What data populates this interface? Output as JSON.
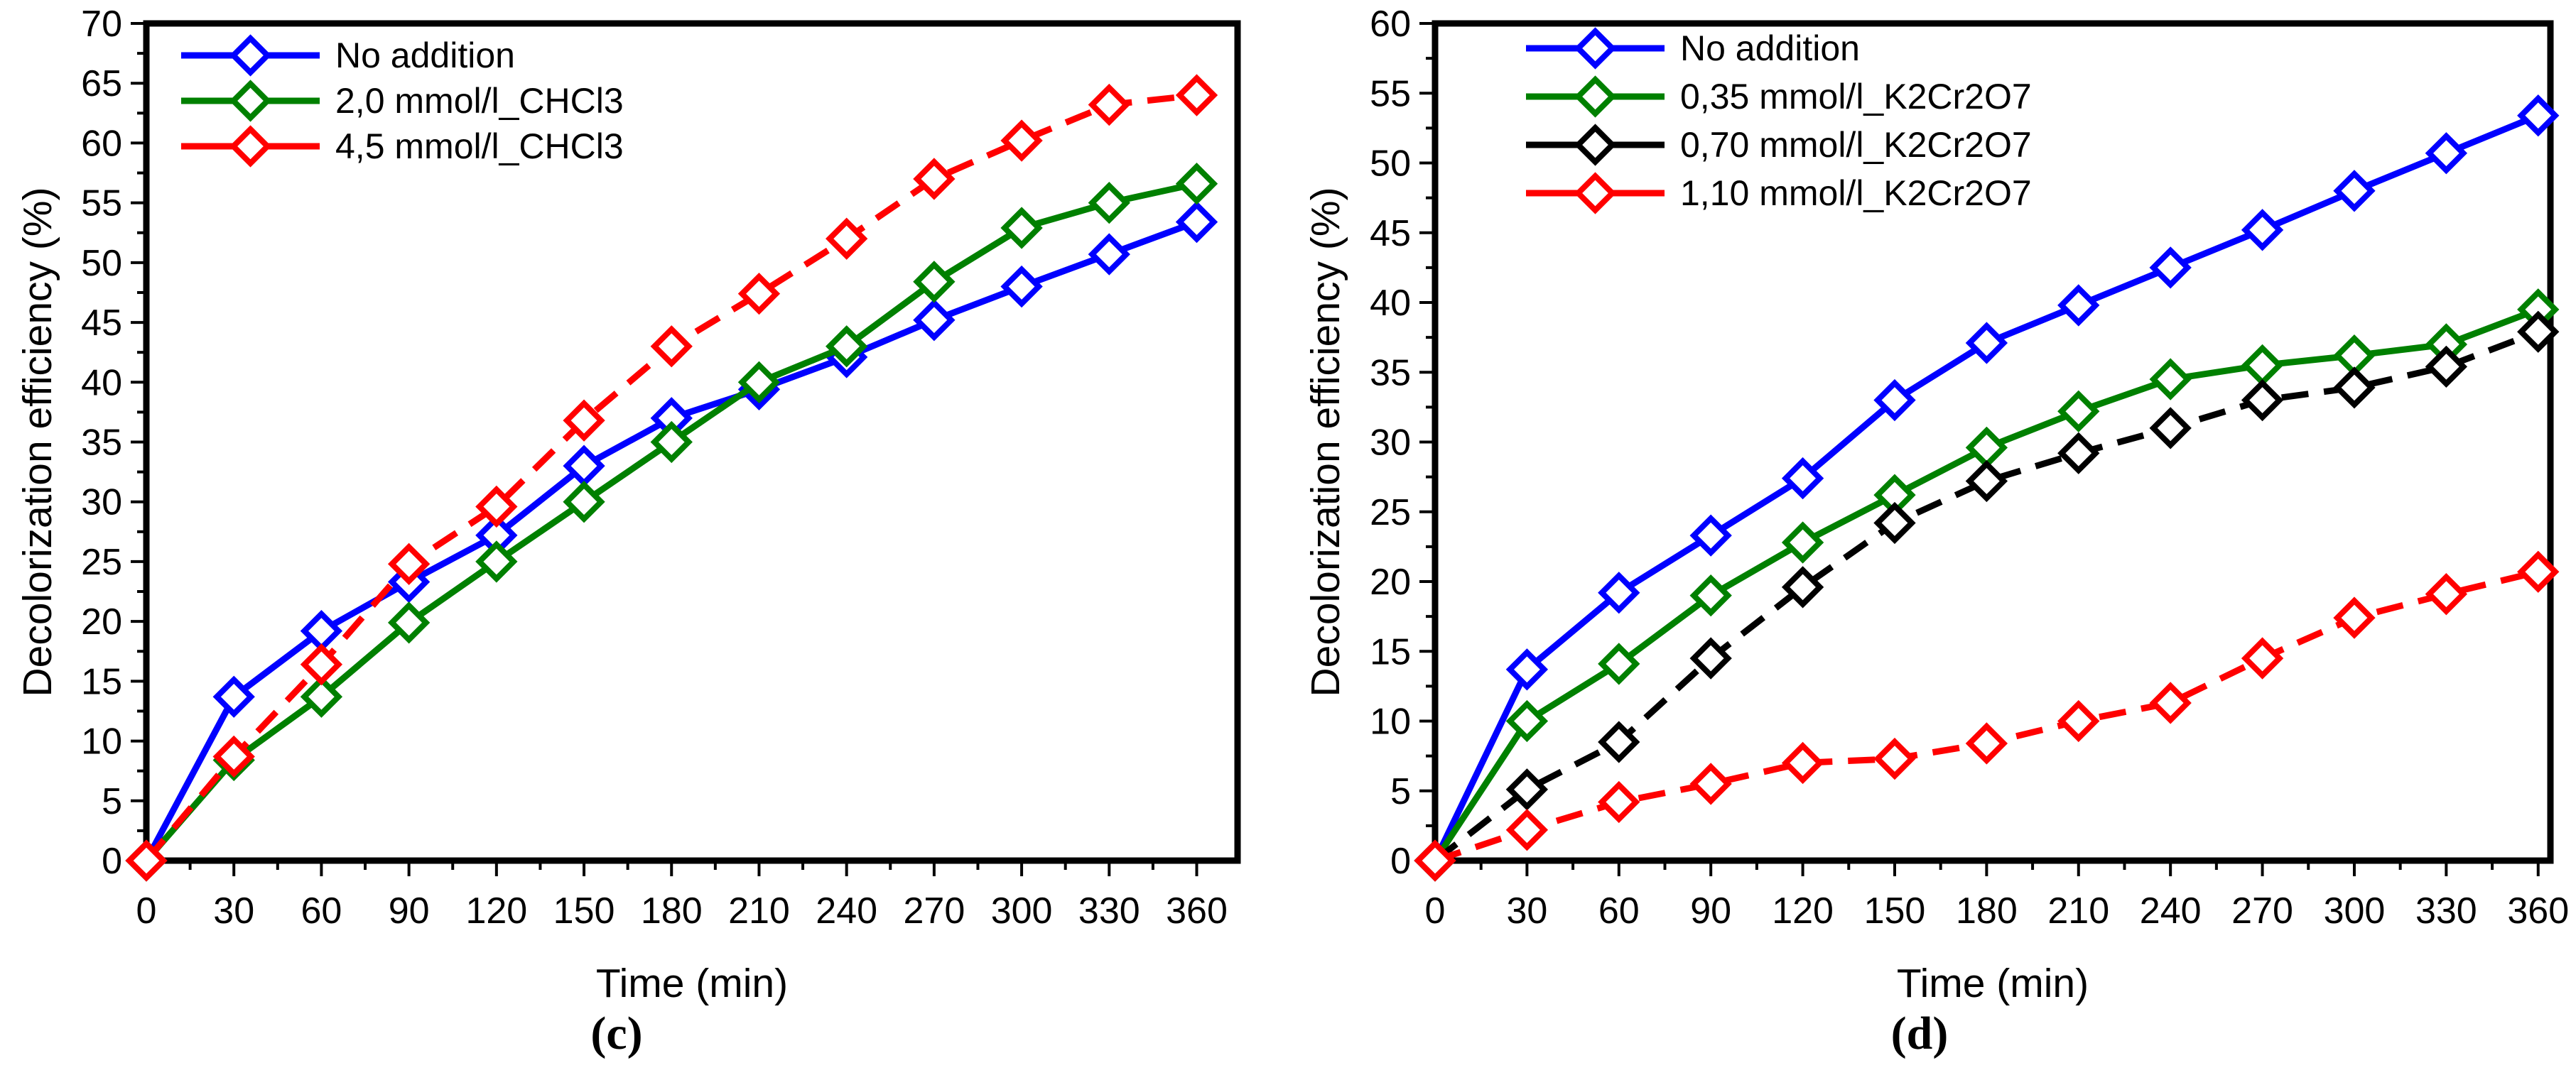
{
  "figure": {
    "background": "#ffffff",
    "text_color": "#000000"
  },
  "chart_data": [
    {
      "id": "c",
      "type": "line",
      "caption": "(c)",
      "xlabel": "Time (min)",
      "ylabel": "Decolorization efficiency (%)",
      "xlim": [
        0,
        374
      ],
      "ylim": [
        0,
        70
      ],
      "x_ticks": [
        0,
        30,
        60,
        90,
        120,
        150,
        180,
        210,
        240,
        270,
        300,
        330,
        360
      ],
      "y_ticks": [
        0,
        5,
        10,
        15,
        20,
        25,
        30,
        35,
        40,
        45,
        50,
        55,
        60,
        65,
        70
      ],
      "x_minor_step": 15,
      "y_minor_step": 2.5,
      "grid": "off",
      "legend_position": "top-left",
      "x": [
        0,
        30,
        60,
        90,
        120,
        150,
        180,
        210,
        240,
        270,
        300,
        330,
        360
      ],
      "series": [
        {
          "name": "No addition",
          "color": "#0000ff",
          "line_style": "solid",
          "marker": "open-diamond",
          "values": [
            0,
            13.7,
            19.2,
            23.3,
            27.2,
            33.0,
            37.0,
            39.4,
            42.1,
            45.2,
            48.0,
            50.7,
            53.4
          ]
        },
        {
          "name": "2,0 mmol/l_CHCl3",
          "color": "#008000",
          "line_style": "solid",
          "marker": "open-diamond",
          "values": [
            0,
            8.4,
            13.7,
            19.9,
            25.0,
            30.0,
            35.0,
            40.0,
            43.0,
            48.4,
            52.9,
            55.0,
            56.6
          ]
        },
        {
          "name": "4,5 mmol/l_CHCl3",
          "color": "#ff0000",
          "line_style": "dashed",
          "marker": "open-diamond",
          "values": [
            0,
            8.7,
            16.4,
            24.8,
            29.6,
            36.8,
            43.0,
            47.4,
            52.0,
            57.0,
            60.2,
            63.2,
            64.0
          ]
        }
      ]
    },
    {
      "id": "d",
      "type": "line",
      "caption": "(d)",
      "xlabel": "Time (min)",
      "ylabel": "Decolorization efficiency (%)",
      "xlim": [
        0,
        364
      ],
      "ylim": [
        0,
        60
      ],
      "x_ticks": [
        0,
        30,
        60,
        90,
        120,
        150,
        180,
        210,
        240,
        270,
        300,
        330,
        360
      ],
      "y_ticks": [
        0,
        5,
        10,
        15,
        20,
        25,
        30,
        35,
        40,
        45,
        50,
        55,
        60
      ],
      "x_minor_step": 15,
      "y_minor_step": 2.5,
      "grid": "off",
      "legend_position": "top-left",
      "x": [
        0,
        30,
        60,
        90,
        120,
        150,
        180,
        210,
        240,
        270,
        300,
        330,
        360
      ],
      "series": [
        {
          "name": "No addition",
          "color": "#0000ff",
          "line_style": "solid",
          "marker": "open-diamond",
          "values": [
            0,
            13.7,
            19.2,
            23.3,
            27.4,
            33.0,
            37.1,
            39.8,
            42.5,
            45.2,
            48.0,
            50.7,
            53.4
          ]
        },
        {
          "name": "0,35 mmol/l_K2Cr2O7",
          "color": "#008000",
          "line_style": "solid",
          "marker": "open-diamond",
          "values": [
            0,
            10.0,
            14.1,
            19.0,
            22.8,
            26.2,
            29.6,
            32.2,
            34.5,
            35.5,
            36.2,
            37.0,
            39.5
          ]
        },
        {
          "name": "0,70 mmol/l_K2Cr2O7",
          "color": "#000000",
          "line_style": "dashed",
          "marker": "open-diamond",
          "values": [
            0,
            5.1,
            8.5,
            14.5,
            19.6,
            24.2,
            27.2,
            29.2,
            31.0,
            33.0,
            33.9,
            35.4,
            37.9
          ]
        },
        {
          "name": "1,10 mmol/l_K2Cr2O7",
          "color": "#ff0000",
          "line_style": "dashed",
          "marker": "open-diamond",
          "values": [
            0,
            2.2,
            4.2,
            5.5,
            7.0,
            7.3,
            8.4,
            10.0,
            11.3,
            14.5,
            17.4,
            19.1,
            20.7
          ]
        }
      ]
    }
  ]
}
